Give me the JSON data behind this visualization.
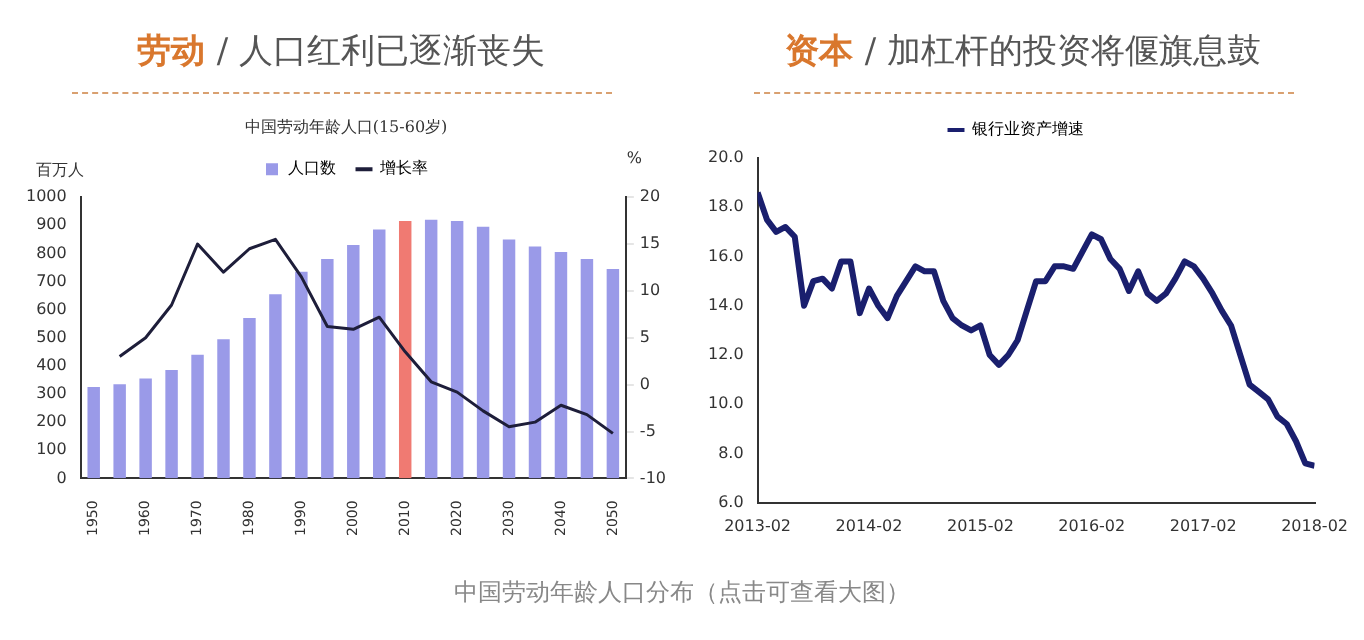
{
  "chart_data": [
    {
      "type": "bar",
      "title": "劳动 / 人口红利已逐渐丧失",
      "subtitle": "中国劳动年龄人口(15-60岁)",
      "ylabel": "百万人",
      "y2label": "%",
      "categories": [
        "1950",
        null,
        "1960",
        null,
        "1970",
        null,
        "1980",
        null,
        "1990",
        null,
        "2000",
        null,
        "2010",
        null,
        "2020",
        null,
        "2030",
        null,
        "2040",
        null,
        "2050"
      ],
      "series": [
        {
          "name": "人口数",
          "colors": [
            "#9a9ae8",
            "#9a9ae8",
            "#9a9ae8",
            "#9a9ae8",
            "#9a9ae8",
            "#9a9ae8",
            "#9a9ae8",
            "#9a9ae8",
            "#9a9ae8",
            "#9a9ae8",
            "#9a9ae8",
            "#9a9ae8",
            "#f07a72",
            "#9a9ae8",
            "#9a9ae8",
            "#9a9ae8",
            "#9a9ae8",
            "#9a9ae8",
            "#9a9ae8",
            "#9a9ae8",
            "#9a9ae8"
          ],
          "values": [
            325,
            335,
            355,
            385,
            440,
            495,
            570,
            655,
            735,
            780,
            830,
            885,
            915,
            920,
            915,
            895,
            850,
            825,
            805,
            780,
            745
          ]
        },
        {
          "name": "增长率",
          "type": "line",
          "axis": "y2",
          "color": "#1e1e3a",
          "values": [
            null,
            3,
            5,
            8.5,
            15,
            12,
            14.5,
            15.5,
            11.5,
            6.2,
            5.9,
            7.2,
            3.5,
            0.3,
            -0.8,
            -2.8,
            -4.5,
            -4,
            -2.2,
            -3.2,
            -5.2
          ]
        }
      ],
      "ylim": [
        0,
        1000
      ],
      "yticks": [
        0,
        100,
        200,
        300,
        400,
        500,
        600,
        700,
        800,
        900,
        1000
      ],
      "y2lim": [
        -10,
        20
      ],
      "y2ticks": [
        -10,
        -5,
        0,
        5,
        10,
        15,
        20
      ],
      "legend": "top",
      "grid": false,
      "marker": "none",
      "annotations": [
        "中国劳动年龄人口分布（点击可查看大图）"
      ]
    },
    {
      "type": "line",
      "title": "资本 / 加杠杆的投资将偃旗息鼓",
      "x": [
        "2013-02",
        "2013-03",
        "2013-04",
        "2013-05",
        "2013-06",
        "2013-07",
        "2013-08",
        "2013-09",
        "2013-10",
        "2013-11",
        "2013-12",
        "2014-01",
        "2014-02",
        "2014-03",
        "2014-04",
        "2014-05",
        "2014-06",
        "2014-07",
        "2014-08",
        "2014-09",
        "2014-10",
        "2014-11",
        "2014-12",
        "2015-01",
        "2015-02",
        "2015-03",
        "2015-04",
        "2015-05",
        "2015-06",
        "2015-07",
        "2015-08",
        "2015-09",
        "2015-10",
        "2015-11",
        "2015-12",
        "2016-01",
        "2016-02",
        "2016-03",
        "2016-04",
        "2016-05",
        "2016-06",
        "2016-07",
        "2016-08",
        "2016-09",
        "2016-10",
        "2016-11",
        "2016-12",
        "2017-01",
        "2017-02",
        "2017-03",
        "2017-04",
        "2017-05",
        "2017-06",
        "2017-07",
        "2017-08",
        "2017-09",
        "2017-10",
        "2017-11",
        "2017-12",
        "2018-01",
        "2018-02"
      ],
      "series": [
        {
          "name": "银行业资产增速",
          "color": "#1a1f6e",
          "values": [
            18.6,
            17.5,
            17.0,
            17.2,
            16.8,
            14.0,
            15.0,
            15.1,
            14.7,
            15.8,
            15.8,
            13.7,
            14.7,
            14.0,
            13.5,
            14.4,
            15.0,
            15.6,
            15.4,
            15.4,
            14.2,
            13.5,
            13.2,
            13.0,
            13.2,
            12.0,
            11.6,
            12.0,
            12.6,
            13.8,
            15.0,
            15.0,
            15.6,
            15.6,
            15.5,
            16.2,
            16.9,
            16.7,
            15.9,
            15.5,
            14.6,
            15.4,
            14.5,
            14.2,
            14.5,
            15.1,
            15.8,
            15.6,
            15.1,
            14.5,
            13.8,
            13.2,
            12.0,
            10.8,
            10.5,
            10.2,
            9.5,
            9.2,
            8.5,
            7.6,
            7.5
          ]
        }
      ],
      "xlim": [
        "2013-02",
        "2018-02"
      ],
      "xticks": [
        "2013-02",
        "2014-02",
        "2015-02",
        "2016-02",
        "2017-02",
        "2018-02"
      ],
      "ylim": [
        6,
        20
      ],
      "yticks": [
        {
          "value": 6,
          "label": "6.0"
        },
        {
          "value": 8,
          "label": "8.0"
        },
        {
          "value": 10,
          "label": "10.0"
        },
        {
          "value": 12,
          "label": "12.0"
        },
        {
          "value": 14,
          "label": "14.0"
        },
        {
          "value": 16,
          "label": "16.0"
        },
        {
          "value": 18,
          "label": "18.0"
        },
        {
          "value": 20,
          "label": "20.0"
        }
      ],
      "legend": "top",
      "grid": false,
      "marker": "none"
    }
  ]
}
